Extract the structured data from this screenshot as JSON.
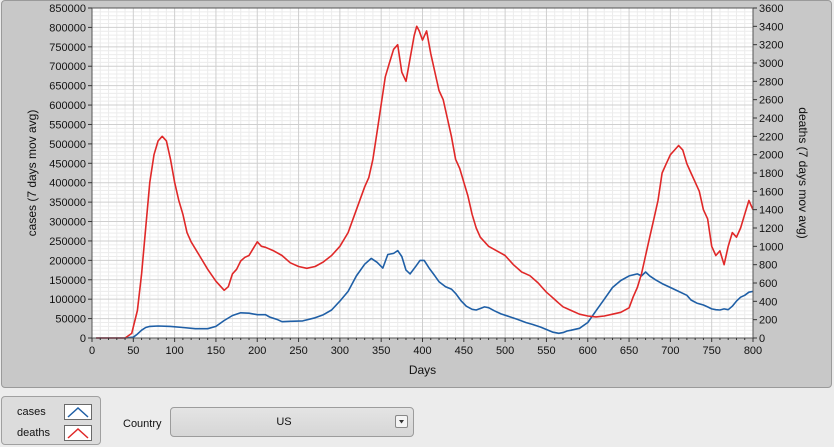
{
  "chart_data": {
    "type": "line",
    "title": "",
    "xlabel": "Days",
    "ylabel_left": "cases  (7 days mov avg)",
    "ylabel_right": "deaths  (7 days mov avg)",
    "xlim": [
      0,
      800
    ],
    "ylim_left": [
      0,
      850000
    ],
    "ylim_right": [
      0,
      3600
    ],
    "grid": true,
    "x_ticks": [
      "0",
      "50",
      "100",
      "150",
      "200",
      "250",
      "300",
      "350",
      "400",
      "450",
      "500",
      "550",
      "600",
      "650",
      "700",
      "750",
      "800"
    ],
    "y_left_ticks": [
      "0",
      "50000",
      "100000",
      "150000",
      "200000",
      "250000",
      "300000",
      "350000",
      "400000",
      "450000",
      "500000",
      "550000",
      "600000",
      "650000",
      "700000",
      "750000",
      "800000",
      "850000"
    ],
    "y_right_ticks": [
      "0",
      "200",
      "400",
      "600",
      "800",
      "1000",
      "1200",
      "1400",
      "1600",
      "1800",
      "2000",
      "2200",
      "2400",
      "2600",
      "2800",
      "3000",
      "3200",
      "3400",
      "3600"
    ],
    "series": [
      {
        "name": "cases",
        "axis": "left",
        "color": "#1f5fa6",
        "points": [
          [
            5,
            0
          ],
          [
            40,
            0
          ],
          [
            50,
            2000
          ],
          [
            55,
            10000
          ],
          [
            60,
            20000
          ],
          [
            65,
            27000
          ],
          [
            70,
            30000
          ],
          [
            80,
            31000
          ],
          [
            95,
            30000
          ],
          [
            110,
            27000
          ],
          [
            125,
            24000
          ],
          [
            140,
            24000
          ],
          [
            150,
            30000
          ],
          [
            160,
            45000
          ],
          [
            170,
            58000
          ],
          [
            180,
            65000
          ],
          [
            190,
            64000
          ],
          [
            200,
            60000
          ],
          [
            210,
            60000
          ],
          [
            215,
            54000
          ],
          [
            225,
            47000
          ],
          [
            230,
            42000
          ],
          [
            240,
            43000
          ],
          [
            255,
            44000
          ],
          [
            270,
            52000
          ],
          [
            280,
            60000
          ],
          [
            290,
            72000
          ],
          [
            300,
            95000
          ],
          [
            310,
            120000
          ],
          [
            320,
            160000
          ],
          [
            330,
            190000
          ],
          [
            338,
            205000
          ],
          [
            345,
            195000
          ],
          [
            352,
            180000
          ],
          [
            358,
            215000
          ],
          [
            365,
            218000
          ],
          [
            370,
            225000
          ],
          [
            375,
            210000
          ],
          [
            380,
            175000
          ],
          [
            385,
            165000
          ],
          [
            392,
            185000
          ],
          [
            397,
            200000
          ],
          [
            402,
            200000
          ],
          [
            408,
            180000
          ],
          [
            415,
            160000
          ],
          [
            420,
            145000
          ],
          [
            428,
            132000
          ],
          [
            435,
            126000
          ],
          [
            440,
            115000
          ],
          [
            447,
            95000
          ],
          [
            453,
            82000
          ],
          [
            460,
            74000
          ],
          [
            465,
            72000
          ],
          [
            470,
            76000
          ],
          [
            475,
            80000
          ],
          [
            480,
            78000
          ],
          [
            487,
            70000
          ],
          [
            495,
            62000
          ],
          [
            505,
            55000
          ],
          [
            515,
            48000
          ],
          [
            525,
            40000
          ],
          [
            533,
            35000
          ],
          [
            543,
            28000
          ],
          [
            550,
            22000
          ],
          [
            558,
            15000
          ],
          [
            565,
            12000
          ],
          [
            570,
            14000
          ],
          [
            575,
            18000
          ],
          [
            580,
            20000
          ],
          [
            590,
            25000
          ],
          [
            600,
            40000
          ],
          [
            610,
            70000
          ],
          [
            620,
            100000
          ],
          [
            630,
            130000
          ],
          [
            640,
            148000
          ],
          [
            650,
            160000
          ],
          [
            660,
            165000
          ],
          [
            665,
            160000
          ],
          [
            670,
            170000
          ],
          [
            675,
            160000
          ],
          [
            682,
            150000
          ],
          [
            690,
            140000
          ],
          [
            700,
            130000
          ],
          [
            710,
            120000
          ],
          [
            720,
            110000
          ],
          [
            725,
            98000
          ],
          [
            732,
            90000
          ],
          [
            740,
            85000
          ],
          [
            745,
            80000
          ],
          [
            750,
            75000
          ],
          [
            755,
            73000
          ],
          [
            760,
            72000
          ],
          [
            765,
            75000
          ],
          [
            770,
            73000
          ],
          [
            775,
            82000
          ],
          [
            780,
            95000
          ],
          [
            785,
            105000
          ],
          [
            790,
            110000
          ],
          [
            795,
            118000
          ],
          [
            800,
            120000
          ]
        ]
      },
      {
        "name": "deaths",
        "axis": "right",
        "color": "#e02828",
        "points": [
          [
            5,
            0
          ],
          [
            40,
            0
          ],
          [
            48,
            50
          ],
          [
            55,
            300
          ],
          [
            60,
            700
          ],
          [
            65,
            1200
          ],
          [
            70,
            1700
          ],
          [
            75,
            2000
          ],
          [
            80,
            2150
          ],
          [
            85,
            2200
          ],
          [
            90,
            2150
          ],
          [
            95,
            1950
          ],
          [
            100,
            1700
          ],
          [
            105,
            1500
          ],
          [
            110,
            1350
          ],
          [
            115,
            1150
          ],
          [
            120,
            1050
          ],
          [
            130,
            900
          ],
          [
            140,
            750
          ],
          [
            150,
            620
          ],
          [
            160,
            520
          ],
          [
            165,
            560
          ],
          [
            170,
            700
          ],
          [
            175,
            750
          ],
          [
            180,
            840
          ],
          [
            185,
            880
          ],
          [
            190,
            900
          ],
          [
            200,
            1050
          ],
          [
            205,
            1000
          ],
          [
            210,
            990
          ],
          [
            220,
            950
          ],
          [
            230,
            900
          ],
          [
            240,
            820
          ],
          [
            250,
            780
          ],
          [
            260,
            760
          ],
          [
            270,
            780
          ],
          [
            280,
            830
          ],
          [
            290,
            900
          ],
          [
            300,
            1000
          ],
          [
            310,
            1150
          ],
          [
            320,
            1400
          ],
          [
            330,
            1650
          ],
          [
            335,
            1750
          ],
          [
            340,
            1950
          ],
          [
            345,
            2250
          ],
          [
            350,
            2550
          ],
          [
            355,
            2850
          ],
          [
            360,
            3000
          ],
          [
            365,
            3150
          ],
          [
            370,
            3200
          ],
          [
            375,
            2900
          ],
          [
            380,
            2800
          ],
          [
            385,
            3050
          ],
          [
            390,
            3300
          ],
          [
            393,
            3400
          ],
          [
            396,
            3350
          ],
          [
            400,
            3250
          ],
          [
            405,
            3350
          ],
          [
            410,
            3100
          ],
          [
            415,
            2900
          ],
          [
            420,
            2700
          ],
          [
            425,
            2600
          ],
          [
            430,
            2400
          ],
          [
            435,
            2200
          ],
          [
            440,
            1950
          ],
          [
            445,
            1850
          ],
          [
            450,
            1700
          ],
          [
            455,
            1550
          ],
          [
            460,
            1350
          ],
          [
            465,
            1200
          ],
          [
            470,
            1100
          ],
          [
            480,
            1000
          ],
          [
            490,
            950
          ],
          [
            500,
            900
          ],
          [
            510,
            800
          ],
          [
            520,
            720
          ],
          [
            525,
            700
          ],
          [
            530,
            680
          ],
          [
            540,
            600
          ],
          [
            545,
            550
          ],
          [
            550,
            500
          ],
          [
            555,
            460
          ],
          [
            560,
            420
          ],
          [
            565,
            380
          ],
          [
            570,
            340
          ],
          [
            580,
            300
          ],
          [
            590,
            260
          ],
          [
            600,
            240
          ],
          [
            610,
            230
          ],
          [
            620,
            240
          ],
          [
            630,
            260
          ],
          [
            640,
            280
          ],
          [
            650,
            330
          ],
          [
            655,
            450
          ],
          [
            660,
            550
          ],
          [
            665,
            700
          ],
          [
            670,
            900
          ],
          [
            675,
            1100
          ],
          [
            680,
            1300
          ],
          [
            685,
            1500
          ],
          [
            690,
            1800
          ],
          [
            695,
            1900
          ],
          [
            700,
            2000
          ],
          [
            705,
            2050
          ],
          [
            710,
            2100
          ],
          [
            715,
            2050
          ],
          [
            720,
            1900
          ],
          [
            725,
            1800
          ],
          [
            730,
            1700
          ],
          [
            735,
            1600
          ],
          [
            740,
            1400
          ],
          [
            745,
            1300
          ],
          [
            750,
            1000
          ],
          [
            755,
            900
          ],
          [
            760,
            950
          ],
          [
            765,
            800
          ],
          [
            770,
            1000
          ],
          [
            775,
            1150
          ],
          [
            780,
            1100
          ],
          [
            785,
            1200
          ],
          [
            790,
            1350
          ],
          [
            795,
            1500
          ],
          [
            800,
            1400
          ]
        ]
      }
    ]
  },
  "legend": {
    "items": [
      {
        "label": "cases",
        "color": "#1f5fa6"
      },
      {
        "label": "deaths",
        "color": "#e02828"
      }
    ]
  },
  "controls": {
    "country_label": "Country",
    "country_value": "US"
  }
}
